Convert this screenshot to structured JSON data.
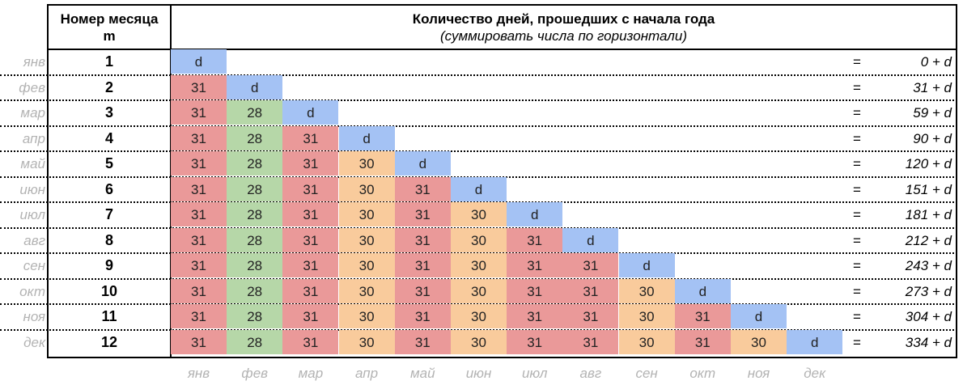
{
  "header": {
    "month_col_line1": "Номер месяца",
    "month_col_line2": "m",
    "title": "Количество дней, прошедших с начала года",
    "subtitle": "(суммировать числа по горизонтали)"
  },
  "month_labels": [
    "янв",
    "фев",
    "мар",
    "апр",
    "май",
    "июн",
    "июл",
    "авг",
    "сен",
    "окт",
    "ноя",
    "дек"
  ],
  "days_in_month": [
    31,
    28,
    31,
    30,
    31,
    30,
    31,
    31,
    30,
    31,
    30
  ],
  "day_symbol": "d",
  "equals": "=",
  "rows": [
    {
      "m": "1",
      "result": "0 + d"
    },
    {
      "m": "2",
      "result": "31 + d"
    },
    {
      "m": "3",
      "result": "59 + d"
    },
    {
      "m": "4",
      "result": "90 + d"
    },
    {
      "m": "5",
      "result": "120 + d"
    },
    {
      "m": "6",
      "result": "151 + d"
    },
    {
      "m": "7",
      "result": "181 + d"
    },
    {
      "m": "8",
      "result": "212 + d"
    },
    {
      "m": "9",
      "result": "243 + d"
    },
    {
      "m": "10",
      "result": "273 + d"
    },
    {
      "m": "11",
      "result": "304 + d"
    },
    {
      "m": "12",
      "result": "334 + d"
    }
  ],
  "colors": {
    "days_31": "#ea9999",
    "days_28": "#b6d7a8",
    "days_30": "#f9cb9c",
    "day_d": "#a4c2f4",
    "muted_label": "#b3b3b3"
  }
}
